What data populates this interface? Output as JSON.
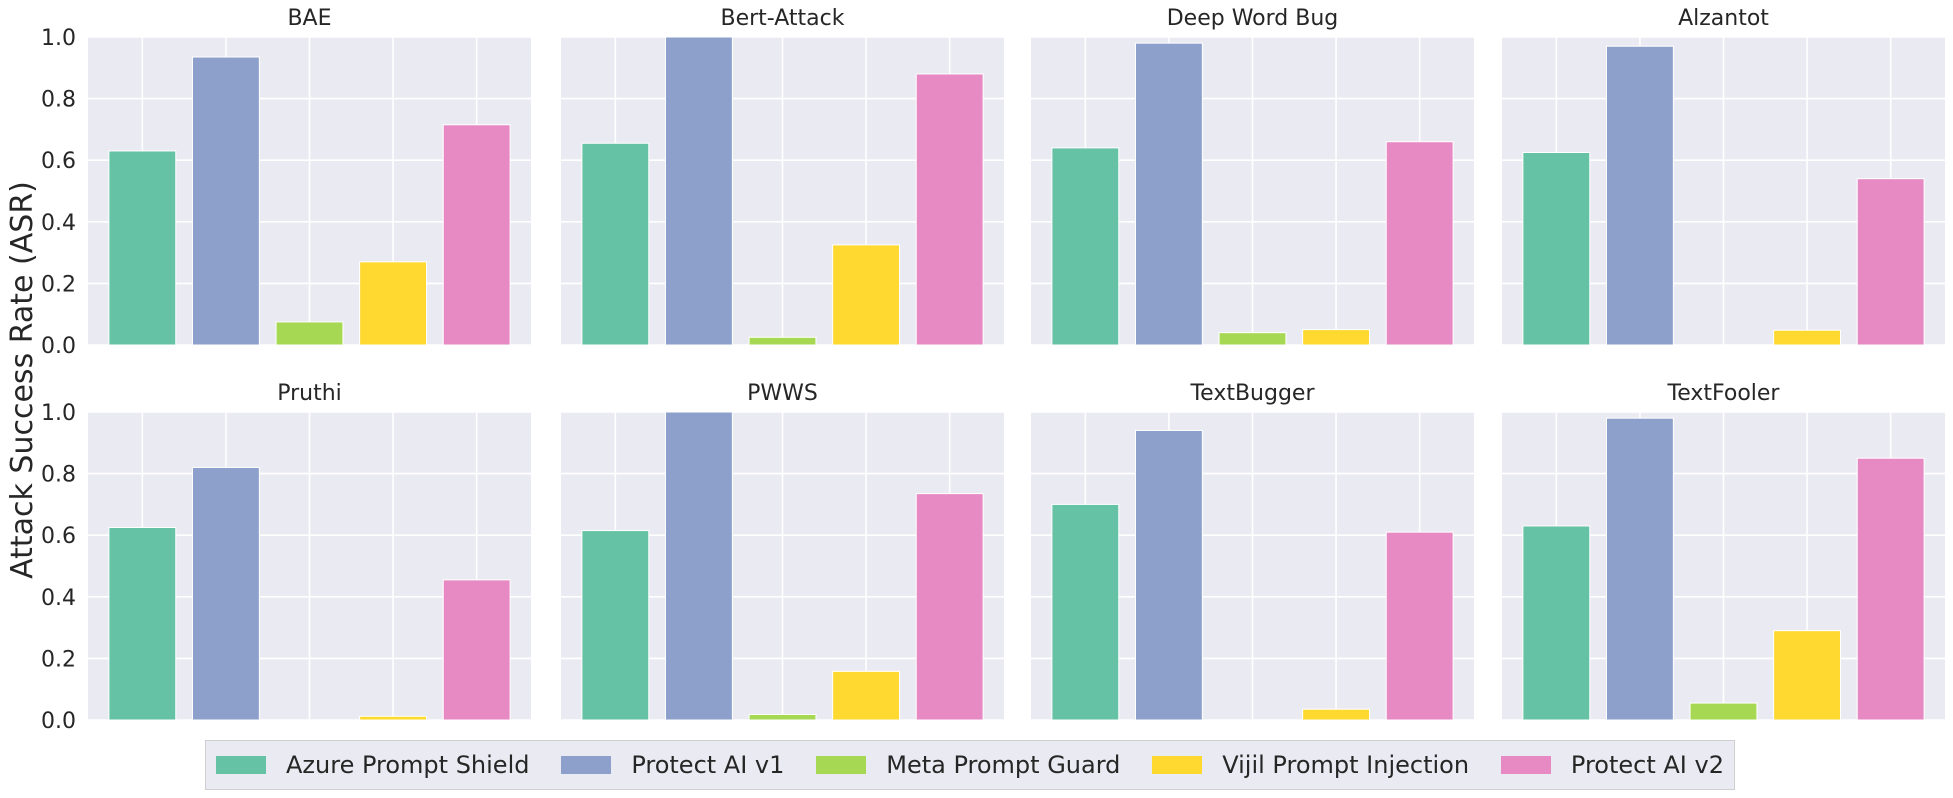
{
  "chart_data": {
    "type": "bar",
    "ylabel": "Attack Success Rate (ASR)",
    "ylim": [
      0,
      1.0
    ],
    "yticks": [
      "0.0",
      "0.2",
      "0.4",
      "0.6",
      "0.8",
      "1.0"
    ],
    "series_names": [
      "Azure Prompt Shield",
      "Protect AI v1",
      "Meta Prompt Guard",
      "Vijil Prompt Injection",
      "Protect AI v2"
    ],
    "colors": [
      "#66c2a5",
      "#8da0cb",
      "#a6d854",
      "#ffd92f",
      "#e78ac3"
    ],
    "panels": [
      {
        "title": "BAE",
        "values": [
          0.63,
          0.935,
          0.075,
          0.27,
          0.715
        ]
      },
      {
        "title": "Bert-Attack",
        "values": [
          0.655,
          1.0,
          0.025,
          0.325,
          0.88
        ]
      },
      {
        "title": "Deep Word Bug",
        "values": [
          0.64,
          0.98,
          0.04,
          0.05,
          0.66
        ]
      },
      {
        "title": "Alzantot",
        "values": [
          0.625,
          0.97,
          0.0,
          0.048,
          0.54
        ]
      },
      {
        "title": "Pruthi",
        "values": [
          0.625,
          0.82,
          0.0,
          0.012,
          0.455
        ]
      },
      {
        "title": "PWWS",
        "values": [
          0.615,
          1.0,
          0.018,
          0.158,
          0.735
        ]
      },
      {
        "title": "TextBugger",
        "values": [
          0.7,
          0.94,
          0.0,
          0.035,
          0.61
        ]
      },
      {
        "title": "TextFooler",
        "values": [
          0.63,
          0.98,
          0.055,
          0.29,
          0.85
        ]
      }
    ],
    "legend_position": "bottom-center"
  }
}
